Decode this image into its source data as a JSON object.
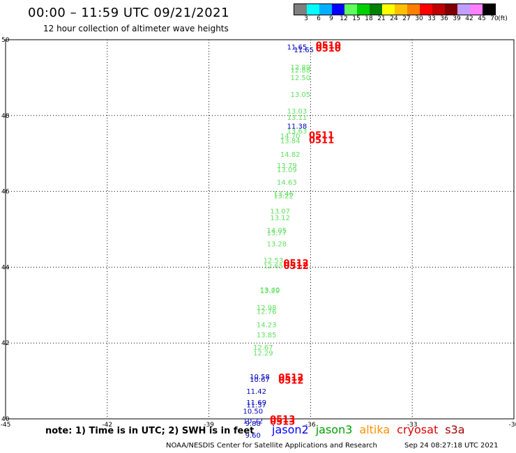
{
  "header": {
    "title": "00:00 – 11:59 UTC 09/21/2021",
    "subtitle": "12 hour collection of altimeter wave heights"
  },
  "color_legend": {
    "colors": [
      "#7f7f7f",
      "#00ffff",
      "#00b0ff",
      "#0000ff",
      "#60ff60",
      "#00d000",
      "#008000",
      "#ffff00",
      "#ffc000",
      "#ff8000",
      "#ff0000",
      "#c00000",
      "#800000",
      "#c0a0ff",
      "#ff80ff",
      "#000000"
    ],
    "ticks": [
      "3",
      "6",
      "9",
      "12",
      "15",
      "18",
      "21",
      "24",
      "27",
      "30",
      "33",
      "36",
      "39",
      "42",
      "45",
      "70"
    ],
    "unit": "(ft)"
  },
  "map": {
    "lon_range": [
      -45,
      -30
    ],
    "lat_range": [
      40,
      50
    ],
    "x_ticks": [
      -45,
      -42,
      -39,
      -36,
      -33,
      -30
    ],
    "y_ticks": [
      40,
      42,
      44,
      46,
      48,
      50
    ],
    "grid": "dotted",
    "colors": {
      "jason2": "#0000c0",
      "jason3": "#60e060",
      "cryosat": "#ff0000"
    },
    "observations": [
      {
        "sat": "jason2",
        "lon": -36.2,
        "lat": 49.67,
        "text": "11.65"
      },
      {
        "sat": "jason2",
        "lon": -36.4,
        "lat": 49.74,
        "text": "11.65"
      },
      {
        "sat": "jason3",
        "lon": -36.3,
        "lat": 49.21,
        "text": "12.89"
      },
      {
        "sat": "jason3",
        "lon": -36.3,
        "lat": 49.14,
        "text": "12.88"
      },
      {
        "sat": "jason3",
        "lon": -36.3,
        "lat": 48.93,
        "text": "12.50"
      },
      {
        "sat": "jason3",
        "lon": -36.3,
        "lat": 48.49,
        "text": "13.05"
      },
      {
        "sat": "jason3",
        "lon": -36.4,
        "lat": 48.05,
        "text": "13.03"
      },
      {
        "sat": "jason3",
        "lon": -36.4,
        "lat": 47.89,
        "text": "13.11"
      },
      {
        "sat": "jason2",
        "lon": -36.4,
        "lat": 47.66,
        "text": "11.38"
      },
      {
        "sat": "jason3",
        "lon": -36.4,
        "lat": 47.53,
        "text": "13.63"
      },
      {
        "sat": "jason3",
        "lon": -36.6,
        "lat": 47.4,
        "text": "14.70"
      },
      {
        "sat": "jason3",
        "lon": -36.6,
        "lat": 47.27,
        "text": "13.84"
      },
      {
        "sat": "jason3",
        "lon": -36.6,
        "lat": 46.91,
        "text": "14.82"
      },
      {
        "sat": "jason3",
        "lon": -36.7,
        "lat": 46.62,
        "text": "13.79"
      },
      {
        "sat": "jason3",
        "lon": -36.7,
        "lat": 46.51,
        "text": "13.09"
      },
      {
        "sat": "jason3",
        "lon": -36.7,
        "lat": 46.18,
        "text": "14.63"
      },
      {
        "sat": "jason3",
        "lon": -36.8,
        "lat": 45.87,
        "text": "13.46"
      },
      {
        "sat": "jason3",
        "lon": -36.8,
        "lat": 45.82,
        "text": "13.22"
      },
      {
        "sat": "jason3",
        "lon": -36.9,
        "lat": 45.41,
        "text": "13.07"
      },
      {
        "sat": "jason3",
        "lon": -36.9,
        "lat": 45.24,
        "text": "13.12"
      },
      {
        "sat": "jason3",
        "lon": -37.0,
        "lat": 44.91,
        "text": "14.05"
      },
      {
        "sat": "jason3",
        "lon": -37.0,
        "lat": 44.84,
        "text": "13.77"
      },
      {
        "sat": "jason3",
        "lon": -37.0,
        "lat": 44.55,
        "text": "13.28"
      },
      {
        "sat": "jason3",
        "lon": -37.1,
        "lat": 44.12,
        "text": "12.53"
      },
      {
        "sat": "jason3",
        "lon": -37.1,
        "lat": 43.97,
        "text": "12.65"
      },
      {
        "sat": "jason3",
        "lon": -37.2,
        "lat": 43.34,
        "text": "13.40"
      },
      {
        "sat": "jason3",
        "lon": -37.2,
        "lat": 43.32,
        "text": "13.29"
      },
      {
        "sat": "jason3",
        "lon": -37.3,
        "lat": 42.87,
        "text": "12.98"
      },
      {
        "sat": "jason3",
        "lon": -37.3,
        "lat": 42.77,
        "text": "12.76"
      },
      {
        "sat": "jason3",
        "lon": -37.3,
        "lat": 42.42,
        "text": "14.23"
      },
      {
        "sat": "jason3",
        "lon": -37.3,
        "lat": 42.15,
        "text": "13.85"
      },
      {
        "sat": "jason3",
        "lon": -37.4,
        "lat": 41.82,
        "text": "12.67"
      },
      {
        "sat": "jason3",
        "lon": -37.4,
        "lat": 41.67,
        "text": "12.29"
      },
      {
        "sat": "jason2",
        "lon": -37.5,
        "lat": 41.05,
        "text": "10.58"
      },
      {
        "sat": "jason2",
        "lon": -37.5,
        "lat": 40.97,
        "text": "10.67"
      },
      {
        "sat": "jason2",
        "lon": -37.6,
        "lat": 40.66,
        "text": "11.42"
      },
      {
        "sat": "jason2",
        "lon": -37.6,
        "lat": 40.37,
        "text": "11.69"
      },
      {
        "sat": "jason2",
        "lon": -37.6,
        "lat": 40.3,
        "text": "11.37"
      },
      {
        "sat": "jason2",
        "lon": -37.7,
        "lat": 40.14,
        "text": "10.50"
      },
      {
        "sat": "jason2",
        "lon": -37.7,
        "lat": 39.88,
        "text": "10.72"
      },
      {
        "sat": "jason2",
        "lon": -37.7,
        "lat": 39.82,
        "text": "9.88"
      },
      {
        "sat": "jason2",
        "lon": -37.7,
        "lat": 39.5,
        "text": "9.60"
      }
    ],
    "time_tags": [
      {
        "lon": -35.85,
        "lat": 49.77,
        "text": "0510"
      },
      {
        "lon": -35.85,
        "lat": 49.69,
        "text": "0510"
      },
      {
        "lon": -36.05,
        "lat": 47.4,
        "text": "0511"
      },
      {
        "lon": -36.05,
        "lat": 47.27,
        "text": "0511"
      },
      {
        "lon": -36.8,
        "lat": 44.03,
        "text": "0512"
      },
      {
        "lon": -36.8,
        "lat": 43.95,
        "text": "0512"
      },
      {
        "lon": -36.95,
        "lat": 41.01,
        "text": "0512"
      },
      {
        "lon": -36.95,
        "lat": 40.93,
        "text": "0512"
      },
      {
        "lon": -37.2,
        "lat": 39.91,
        "text": "0513"
      },
      {
        "lon": -37.2,
        "lat": 39.84,
        "text": "0513"
      }
    ]
  },
  "footer": {
    "note": "note:  1) Time is in UTC;  2) SWH is in feet",
    "satellites": [
      {
        "name": "jason2",
        "color": "#0000ff"
      },
      {
        "name": "jason3",
        "color": "#00a000"
      },
      {
        "name": "altika",
        "color": "#ff9000"
      },
      {
        "name": "cryosat",
        "color": "#e00000"
      },
      {
        "name": "s3a",
        "color": "#a00000"
      }
    ],
    "credit": "NOAA/NESDIS Center for Satellite Applications and Research",
    "timestamp": "Sep 24 08:27:18 UTC 2021"
  }
}
